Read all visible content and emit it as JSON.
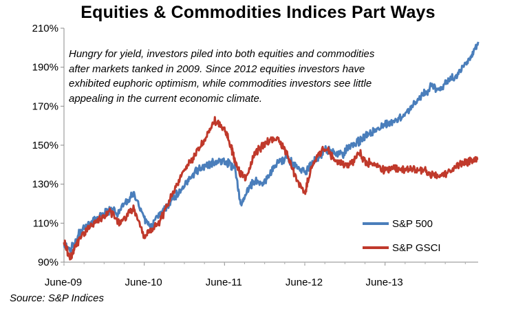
{
  "chart_data": {
    "type": "line",
    "title": "Equities & Commodities Indices Part  Ways",
    "ylim": [
      90,
      210
    ],
    "y_ticks": [
      "90%",
      "110%",
      "130%",
      "150%",
      "170%",
      "190%",
      "210%"
    ],
    "y_tick_values": [
      90,
      110,
      130,
      150,
      170,
      190,
      210
    ],
    "x_ticks": [
      "June-09",
      "June-10",
      "June-11",
      "June-12",
      "June-13"
    ],
    "x_tick_years": [
      2009.42,
      2010.42,
      2011.42,
      2012.42,
      2013.42
    ],
    "xlim": [
      2009.42,
      2014.58
    ],
    "annotation": "Hungry for yield, investors piled into both equities and commodities after markets tanked in 2009. Since 2012 equities investors have exhibited euphoric optimism, while commodities  investors see little appealing in the current economic climate.",
    "source": "Source: S&P Indices",
    "legend_position": "bottom-right",
    "series": [
      {
        "name": "S&P 500",
        "color": "#4a7ebb",
        "x": [
          2009.42,
          2009.5,
          2009.6,
          2009.7,
          2009.8,
          2009.9,
          2010.0,
          2010.1,
          2010.2,
          2010.3,
          2010.42,
          2010.5,
          2010.6,
          2010.7,
          2010.8,
          2010.9,
          2011.0,
          2011.1,
          2011.2,
          2011.3,
          2011.42,
          2011.5,
          2011.55,
          2011.62,
          2011.7,
          2011.8,
          2011.9,
          2012.0,
          2012.1,
          2012.2,
          2012.3,
          2012.42,
          2012.5,
          2012.6,
          2012.7,
          2012.8,
          2012.9,
          2013.0,
          2013.1,
          2013.2,
          2013.3,
          2013.42,
          2013.5,
          2013.6,
          2013.7,
          2013.8,
          2013.9,
          2014.0,
          2014.1,
          2014.2,
          2014.3,
          2014.4,
          2014.5,
          2014.58
        ],
        "values": [
          99,
          96,
          104,
          108,
          112,
          114,
          117,
          115,
          121,
          125,
          112,
          108,
          114,
          118,
          124,
          128,
          134,
          138,
          140,
          141,
          141,
          140,
          138,
          120,
          126,
          132,
          130,
          136,
          142,
          143,
          140,
          136,
          140,
          145,
          148,
          145,
          146,
          150,
          152,
          155,
          158,
          160,
          162,
          164,
          167,
          172,
          176,
          180,
          178,
          183,
          185,
          190,
          196,
          203
        ]
      },
      {
        "name": "S&P GSCI",
        "color": "#c0392b",
        "x": [
          2009.42,
          2009.5,
          2009.55,
          2009.6,
          2009.7,
          2009.8,
          2009.9,
          2010.0,
          2010.1,
          2010.2,
          2010.3,
          2010.42,
          2010.5,
          2010.6,
          2010.7,
          2010.8,
          2010.9,
          2011.0,
          2011.1,
          2011.2,
          2011.3,
          2011.42,
          2011.5,
          2011.55,
          2011.62,
          2011.7,
          2011.8,
          2011.9,
          2012.0,
          2012.1,
          2012.2,
          2012.3,
          2012.42,
          2012.5,
          2012.6,
          2012.7,
          2012.8,
          2012.9,
          2013.0,
          2013.1,
          2013.2,
          2013.3,
          2013.42,
          2013.5,
          2013.6,
          2013.7,
          2013.8,
          2013.9,
          2014.0,
          2014.1,
          2014.2,
          2014.3,
          2014.4,
          2014.5,
          2014.58
        ],
        "values": [
          100,
          92,
          97,
          101,
          107,
          110,
          113,
          116,
          110,
          114,
          117,
          103,
          106,
          110,
          118,
          128,
          136,
          142,
          148,
          155,
          163,
          158,
          149,
          142,
          135,
          134,
          146,
          150,
          154,
          152,
          146,
          134,
          125,
          138,
          146,
          148,
          142,
          140,
          141,
          146,
          141,
          140,
          137,
          139,
          137,
          137,
          138,
          137,
          135,
          134,
          136,
          139,
          141,
          142,
          143
        ]
      }
    ]
  }
}
